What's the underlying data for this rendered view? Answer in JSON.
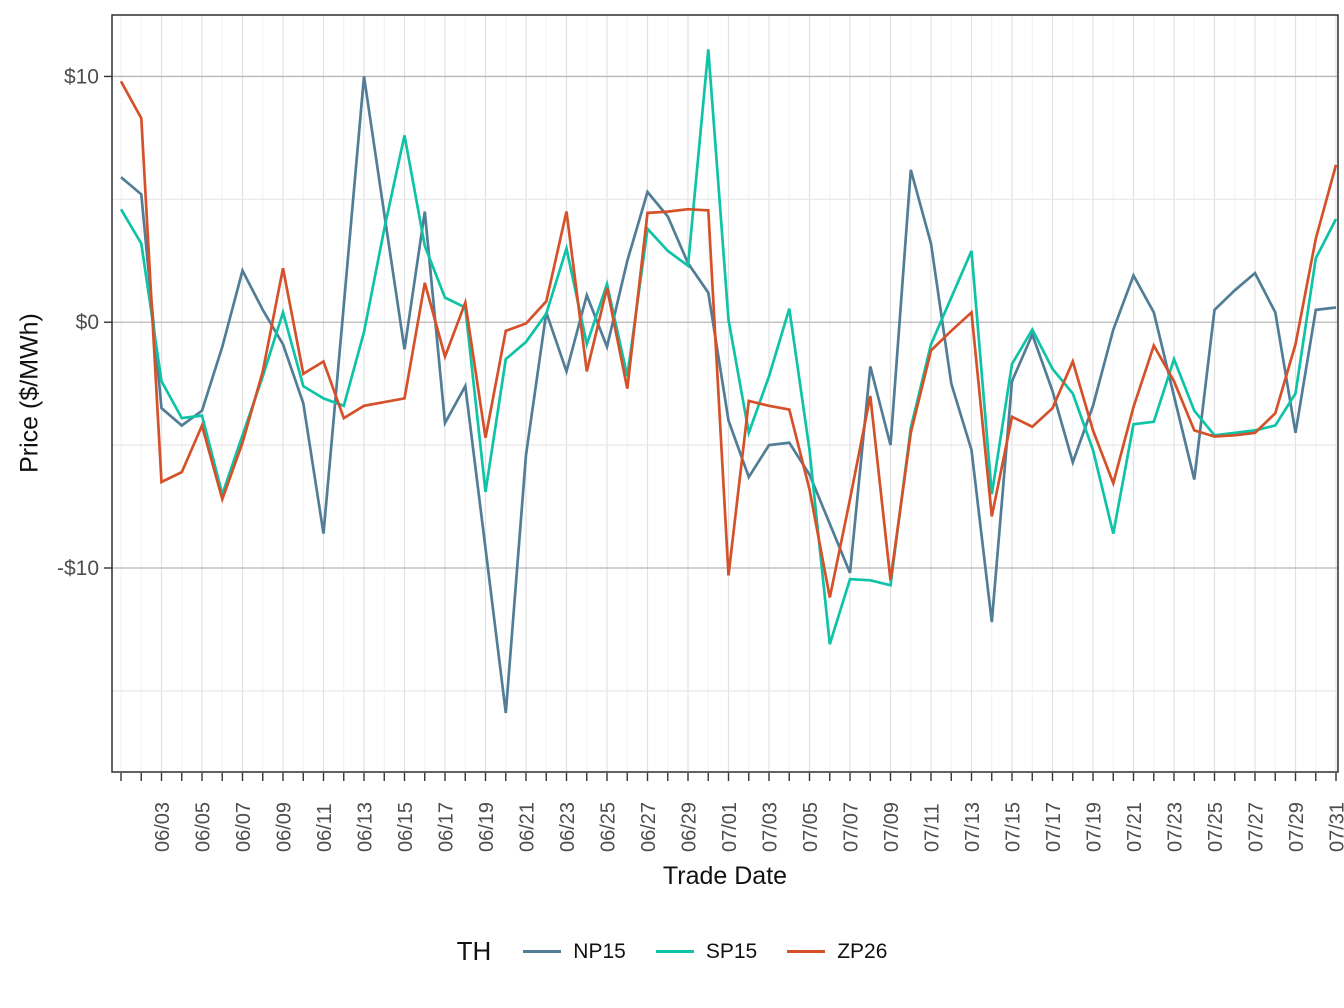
{
  "chart_data": {
    "type": "line",
    "title": "",
    "xlabel": "Trade Date",
    "ylabel": "Price ($/MWh)",
    "legend_title": "TH",
    "legend_position": "bottom",
    "grid": true,
    "ylim": [
      -18.3,
      12.5
    ],
    "y_major_ticks": [
      {
        "label": "$10",
        "value": 10
      },
      {
        "label": "$0",
        "value": 0
      },
      {
        "label": "-$10",
        "value": -10
      }
    ],
    "y_minor_ticks": [
      5,
      -5,
      -15
    ],
    "x_label_every_days": 2,
    "x_dates": [
      "06/01",
      "06/02",
      "06/03",
      "06/04",
      "06/05",
      "06/06",
      "06/07",
      "06/08",
      "06/09",
      "06/10",
      "06/11",
      "06/12",
      "06/13",
      "06/14",
      "06/15",
      "06/16",
      "06/17",
      "06/18",
      "06/19",
      "06/20",
      "06/21",
      "06/22",
      "06/23",
      "06/24",
      "06/25",
      "06/26",
      "06/27",
      "06/28",
      "06/29",
      "06/30",
      "07/01",
      "07/02",
      "07/03",
      "07/04",
      "07/05",
      "07/06",
      "07/07",
      "07/08",
      "07/09",
      "07/10",
      "07/11",
      "07/12",
      "07/13",
      "07/14",
      "07/15",
      "07/16",
      "07/17",
      "07/18",
      "07/19",
      "07/20",
      "07/21",
      "07/22",
      "07/23",
      "07/24",
      "07/25",
      "07/26",
      "07/27",
      "07/28",
      "07/29",
      "07/30",
      "07/31"
    ],
    "series": [
      {
        "name": "NP15",
        "color": "#527D96",
        "values": [
          5.9,
          5.2,
          -3.5,
          -4.2,
          -3.6,
          -1.0,
          2.1,
          0.5,
          -0.9,
          -3.3,
          -8.6,
          0.7,
          10.0,
          4.4,
          -1.1,
          4.5,
          -4.1,
          -2.6,
          -9.2,
          -15.9,
          -5.4,
          0.4,
          -2.0,
          1.1,
          -1.0,
          2.5,
          5.3,
          4.3,
          2.4,
          1.2,
          -4.0,
          -6.3,
          -5.0,
          -4.9,
          -6.2,
          -8.2,
          -10.2,
          -1.8,
          -5.0,
          6.2,
          3.2,
          -2.5,
          -5.2,
          -12.2,
          -2.4,
          -0.5,
          -2.8,
          -5.7,
          -3.4,
          -0.3,
          1.9,
          0.4,
          -3.0,
          -6.4,
          0.5,
          1.3,
          2.0,
          0.4,
          -4.5,
          0.5,
          0.6
        ]
      },
      {
        "name": "SP15",
        "color": "#0EC3A6",
        "values": [
          4.6,
          3.2,
          -2.4,
          -3.9,
          -3.8,
          -7.0,
          -4.6,
          -2.2,
          0.4,
          -2.6,
          -3.1,
          -3.4,
          -0.4,
          3.8,
          7.6,
          3.1,
          1.0,
          0.6,
          -6.9,
          -1.5,
          -0.8,
          0.35,
          3.0,
          -0.9,
          1.55,
          -2.2,
          3.8,
          2.9,
          2.3,
          11.1,
          0.1,
          -4.5,
          -2.2,
          0.55,
          -5.2,
          -13.1,
          -10.45,
          -10.5,
          -10.7,
          -4.3,
          -0.9,
          1.0,
          2.9,
          -7.0,
          -1.7,
          -0.3,
          -1.9,
          -2.9,
          -5.2,
          -8.6,
          -4.15,
          -4.05,
          -1.5,
          -3.6,
          -4.6,
          -4.5,
          -4.4,
          -4.2,
          -2.9,
          2.6,
          4.2
        ]
      },
      {
        "name": "ZP26",
        "color": "#D4512A",
        "values": [
          9.8,
          8.3,
          -6.5,
          -6.1,
          -4.2,
          -7.2,
          -4.9,
          -2.0,
          2.2,
          -2.1,
          -1.6,
          -3.9,
          -3.4,
          -3.25,
          -3.1,
          1.6,
          -1.4,
          0.8,
          -4.7,
          -0.35,
          -0.05,
          0.85,
          4.5,
          -2.0,
          1.4,
          -2.7,
          4.45,
          4.5,
          4.6,
          4.55,
          -10.3,
          -3.2,
          -3.4,
          -3.55,
          -6.8,
          -11.2,
          -7.2,
          -3.0,
          -10.5,
          -4.5,
          -1.15,
          -0.35,
          0.4,
          -7.9,
          -3.85,
          -4.25,
          -3.5,
          -1.6,
          -4.4,
          -6.55,
          -3.45,
          -0.95,
          -2.4,
          -4.4,
          -4.65,
          -4.6,
          -4.5,
          -3.7,
          -0.9,
          3.4,
          6.4
        ]
      }
    ],
    "style": {
      "panel_border_color": "#2F2F2F",
      "major_grid_color": "#B8B8B8",
      "minor_grid_color": "#E8E8E8",
      "vertical_grid_color": "#E2E2E2",
      "tick_color": "#333333",
      "tick_label_color": "#4D4D4D"
    }
  }
}
